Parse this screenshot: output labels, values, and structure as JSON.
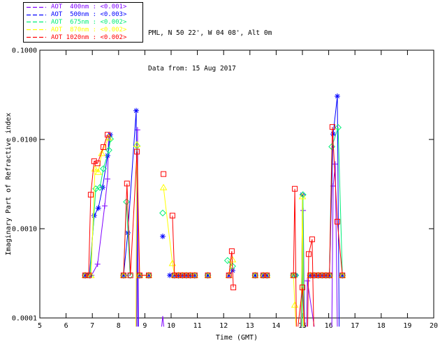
{
  "header": {
    "line1": "PML, N 50 22', W 04 08', Alt 0m",
    "line2": "Data from: 15 Aug 2017"
  },
  "chart_data": {
    "type": "line",
    "title": "",
    "xlabel": "Time (GMT)",
    "ylabel": "Imaginary Part of Refractive index",
    "xlim": [
      5,
      20
    ],
    "ylim": [
      0.0001,
      0.1
    ],
    "yscale": "log",
    "grid": false,
    "legend_position": "outside-top-left",
    "x_ticks": [
      5,
      6,
      7,
      8,
      9,
      10,
      11,
      12,
      13,
      14,
      15,
      16,
      17,
      18,
      19,
      20
    ],
    "x_tick_labels": [
      "5",
      "6",
      "7",
      "8",
      "9",
      "10",
      "11",
      "12",
      "13",
      "14",
      "15",
      "16",
      "17",
      "18",
      "19",
      "20"
    ],
    "y_ticks": [
      0.1,
      0.01,
      0.001,
      0.0001
    ],
    "y_tick_labels": [
      "0.1000",
      "0.0100",
      "0.0010",
      "0.0001"
    ],
    "baseline_value": 0.0003,
    "series": [
      {
        "name": "AOT 400nm",
        "legend_label": "AOT  400nm : <0.001>",
        "color": "#7F00FF",
        "marker": "plus",
        "points": [
          [
            6.73,
            0.0003
          ],
          [
            6.97,
            0.0003
          ],
          [
            7.2,
            0.0004
          ],
          [
            7.47,
            0.0018
          ],
          [
            7.58,
            0.0036
          ],
          [
            7.62,
            0.011
          ],
          null,
          [
            8.35,
            0.0003
          ],
          null,
          [
            8.68,
            8e-05
          ],
          [
            8.72,
            0.0128
          ],
          [
            8.76,
            8e-05
          ],
          null,
          [
            9.64,
            8e-05
          ],
          [
            9.68,
            0.000105
          ],
          [
            9.72,
            8e-05
          ],
          null,
          [
            14.93,
            8e-05
          ],
          [
            15.03,
            0.0016
          ],
          [
            15.08,
            8e-05
          ],
          null,
          [
            15.16,
            8e-05
          ],
          [
            15.19,
            0.00026
          ],
          [
            15.45,
            8e-05
          ],
          null,
          [
            16.12,
            8e-05
          ],
          [
            16.17,
            0.003
          ],
          [
            16.25,
            0.0053
          ],
          [
            16.33,
            8e-05
          ]
        ]
      },
      {
        "name": "AOT 500nm",
        "legend_label": "AOT  500nm : <0.003>",
        "color": "#0000FF",
        "marker": "asterisk",
        "points": [
          [
            6.73,
            0.0003
          ],
          [
            6.89,
            0.0003
          ],
          [
            7.07,
            0.0014
          ],
          [
            7.23,
            0.0017
          ],
          [
            7.39,
            0.0029
          ],
          [
            7.58,
            0.0066
          ],
          [
            7.68,
            0.0113
          ],
          null,
          [
            8.19,
            0.0003
          ],
          [
            8.35,
            0.0009
          ],
          [
            8.67,
            0.021
          ],
          [
            8.73,
            8e-05
          ],
          null,
          [
            8.8,
            0.0003
          ],
          [
            9.15,
            0.0003
          ],
          null,
          [
            9.68,
            0.00082
          ],
          null,
          [
            9.95,
            0.0003
          ],
          [
            10.13,
            0.0003
          ],
          [
            10.28,
            0.0003
          ],
          [
            10.43,
            0.0003
          ],
          [
            10.58,
            0.0003
          ],
          [
            10.73,
            0.0003
          ],
          [
            10.9,
            0.0003
          ],
          null,
          [
            11.4,
            0.0003
          ],
          null,
          [
            12.2,
            0.0003
          ],
          [
            12.34,
            0.00034
          ],
          null,
          [
            13.2,
            0.0003
          ],
          null,
          [
            13.51,
            0.0003
          ],
          [
            13.65,
            0.0003
          ],
          null,
          [
            14.66,
            0.0003
          ],
          [
            14.74,
            0.0003
          ],
          null,
          [
            14.96,
            8e-05
          ],
          [
            15.0,
            0.0024
          ],
          [
            15.05,
            8e-05
          ],
          null,
          [
            15.3,
            0.0003
          ],
          [
            15.45,
            0.0003
          ],
          [
            15.6,
            0.0003
          ],
          [
            15.75,
            0.0003
          ],
          [
            15.9,
            0.0003
          ],
          [
            16.03,
            0.0003
          ],
          [
            16.17,
            0.0115
          ],
          [
            16.33,
            0.0305
          ],
          [
            16.4,
            8e-05
          ],
          null,
          [
            16.52,
            0.0003
          ]
        ]
      },
      {
        "name": "AOT 675nm",
        "legend_label": "AOT  675nm : <0.002>",
        "color": "#00EE76",
        "marker": "diamond",
        "points": [
          [
            6.73,
            0.0003
          ],
          [
            6.91,
            0.0003
          ],
          [
            7.13,
            0.0028
          ],
          [
            7.29,
            0.0029
          ],
          [
            7.42,
            0.0047
          ],
          [
            7.63,
            0.0076
          ],
          [
            7.69,
            0.0101
          ],
          null,
          [
            8.19,
            0.0003
          ],
          [
            8.3,
            0.002
          ],
          [
            8.44,
            0.0003
          ],
          null,
          [
            8.7,
            0.0085
          ],
          null,
          [
            8.8,
            0.0003
          ],
          [
            9.15,
            0.0003
          ],
          null,
          [
            9.68,
            0.0015
          ],
          null,
          [
            10.13,
            0.0003
          ],
          [
            10.28,
            0.0003
          ],
          [
            10.43,
            0.0003
          ],
          [
            10.58,
            0.0003
          ],
          [
            10.73,
            0.0003
          ],
          [
            10.9,
            0.0003
          ],
          null,
          [
            11.4,
            0.0003
          ],
          null,
          [
            12.15,
            0.00044
          ],
          [
            12.34,
            0.00038
          ],
          null,
          [
            13.2,
            0.0003
          ],
          null,
          [
            13.51,
            0.0003
          ],
          [
            13.65,
            0.0003
          ],
          null,
          [
            14.66,
            0.0003
          ],
          [
            14.74,
            0.0003
          ],
          null,
          [
            14.99,
            8e-05
          ],
          [
            15.02,
            0.0024
          ],
          [
            15.06,
            8e-05
          ],
          null,
          [
            15.3,
            0.0003
          ],
          [
            15.45,
            0.0003
          ],
          [
            15.6,
            0.0003
          ],
          [
            15.75,
            0.0003
          ],
          [
            15.9,
            0.0003
          ],
          [
            16.03,
            0.0003
          ],
          [
            16.12,
            0.0083
          ],
          [
            16.36,
            0.0136
          ],
          [
            16.52,
            0.0003
          ]
        ]
      },
      {
        "name": "AOT 870nm",
        "legend_label": "AOT  870nm : <0.002>",
        "color": "#FFFF00",
        "marker": "triangle",
        "points": [
          [
            6.73,
            0.0003
          ],
          [
            6.95,
            0.0003
          ],
          [
            7.1,
            0.0047
          ],
          [
            7.23,
            0.0043
          ],
          [
            7.36,
            0.007
          ],
          [
            7.62,
            0.0105
          ],
          null,
          [
            8.19,
            0.0003
          ],
          null,
          [
            8.66,
            8e-05
          ],
          [
            8.7,
            0.0088
          ],
          [
            8.8,
            0.0003
          ],
          [
            9.15,
            0.0003
          ],
          null,
          [
            9.71,
            0.0029
          ],
          [
            10.05,
            0.00041
          ],
          [
            10.13,
            0.0003
          ],
          [
            10.28,
            0.0003
          ],
          [
            10.43,
            0.0003
          ],
          [
            10.58,
            0.0003
          ],
          [
            10.73,
            0.0003
          ],
          [
            10.9,
            0.0003
          ],
          null,
          [
            11.4,
            0.0003
          ],
          null,
          [
            12.2,
            0.0003
          ],
          [
            12.34,
            0.00045
          ],
          null,
          [
            13.2,
            0.0003
          ],
          null,
          [
            13.51,
            0.0003
          ],
          [
            13.65,
            0.0003
          ],
          null,
          [
            14.66,
            0.0003
          ],
          [
            14.71,
            0.00014
          ],
          [
            14.76,
            8e-05
          ],
          null,
          [
            14.95,
            8e-05
          ],
          [
            15.0,
            0.0023
          ],
          [
            15.04,
            8e-05
          ],
          null,
          [
            15.3,
            0.0003
          ],
          [
            15.45,
            0.0003
          ],
          [
            15.6,
            0.0003
          ],
          [
            15.75,
            0.0003
          ],
          [
            15.9,
            0.0003
          ],
          [
            16.03,
            0.0003
          ],
          null,
          [
            16.52,
            0.0003
          ]
        ]
      },
      {
        "name": "AOT 1020nm",
        "legend_label": "AOT 1020nm : <0.002>",
        "color": "#FF0000",
        "marker": "square",
        "points": [
          [
            6.73,
            0.0003
          ],
          [
            6.86,
            0.0003
          ],
          [
            6.94,
            0.0024
          ],
          [
            7.07,
            0.0057
          ],
          [
            7.2,
            0.0054
          ],
          [
            7.42,
            0.0082
          ],
          [
            7.58,
            0.0113
          ],
          null,
          [
            8.19,
            0.0003
          ],
          [
            8.32,
            0.0032
          ],
          [
            8.45,
            0.0003
          ],
          [
            8.7,
            0.0073
          ],
          [
            8.8,
            0.0003
          ],
          [
            9.15,
            0.0003
          ],
          null,
          [
            9.71,
            0.0041
          ],
          null,
          [
            10.05,
            0.0014
          ],
          [
            10.13,
            0.0003
          ],
          [
            10.28,
            0.0003
          ],
          [
            10.43,
            0.0003
          ],
          [
            10.58,
            0.0003
          ],
          [
            10.73,
            0.0003
          ],
          [
            10.9,
            0.0003
          ],
          null,
          [
            11.4,
            0.0003
          ],
          null,
          [
            12.2,
            0.0003
          ],
          [
            12.31,
            0.00056
          ],
          [
            12.37,
            0.00022
          ],
          null,
          [
            13.2,
            0.0003
          ],
          null,
          [
            13.51,
            0.0003
          ],
          [
            13.65,
            0.0003
          ],
          null,
          [
            14.66,
            0.0003
          ],
          [
            14.71,
            0.0028
          ],
          [
            14.77,
            8e-05
          ],
          null,
          [
            14.83,
            8e-05
          ],
          [
            15.0,
            0.00022
          ],
          [
            15.08,
            8e-05
          ],
          null,
          [
            15.2,
            8e-05
          ],
          [
            15.24,
            0.00052
          ],
          [
            15.37,
            0.00076
          ],
          [
            15.43,
            8e-05
          ],
          null,
          [
            15.3,
            0.0003
          ],
          [
            15.45,
            0.0003
          ],
          [
            15.6,
            0.0003
          ],
          [
            15.75,
            0.0003
          ],
          [
            15.9,
            0.0003
          ],
          [
            16.03,
            0.0003
          ],
          [
            16.14,
            0.0138
          ],
          [
            16.33,
            0.0012
          ],
          [
            16.52,
            0.0003
          ]
        ]
      }
    ]
  }
}
